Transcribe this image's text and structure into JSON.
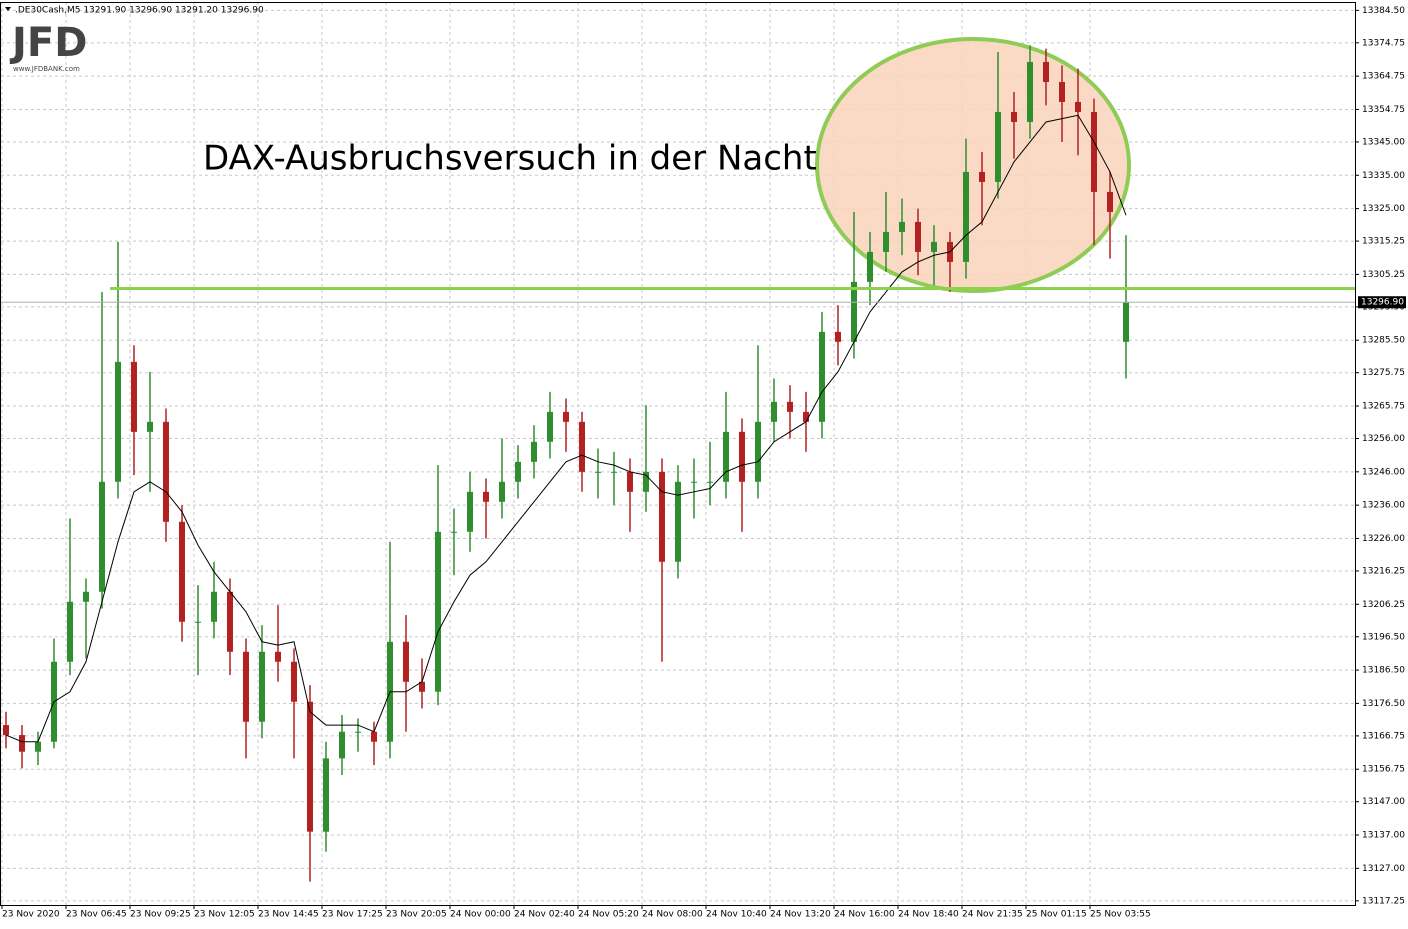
{
  "chart_data": {
    "type": "candlestick",
    "title": ".DE30Cash,M5  13291.90 13296.90 13291.20 13296.90",
    "logo": "JFD",
    "logo_sub": "www.JFDBANK.com",
    "annotation": "DAX-Ausbruchsversuch in der Nacht",
    "up_color": "#2f8f2f",
    "down_color": "#b22222",
    "grid": true,
    "ylim": [
      13116,
      13387
    ],
    "yticks": [
      {
        "value": 13384.5,
        "label": "13384.50"
      },
      {
        "value": 13374.75,
        "label": "13374.75"
      },
      {
        "value": 13364.75,
        "label": "13364.75"
      },
      {
        "value": 13354.75,
        "label": "13354.75"
      },
      {
        "value": 13345,
        "label": "13345.00"
      },
      {
        "value": 13335,
        "label": "13335.00"
      },
      {
        "value": 13325,
        "label": "13325.00"
      },
      {
        "value": 13315.25,
        "label": "13315.25"
      },
      {
        "value": 13305.25,
        "label": "13305.25"
      },
      {
        "value": 13295.5,
        "label": "13295.50"
      },
      {
        "value": 13285.5,
        "label": "13285.50"
      },
      {
        "value": 13275.75,
        "label": "13275.75"
      },
      {
        "value": 13265.75,
        "label": "13265.75"
      },
      {
        "value": 13256,
        "label": "13256.00"
      },
      {
        "value": 13246,
        "label": "13246.00"
      },
      {
        "value": 13236,
        "label": "13236.00"
      },
      {
        "value": 13226,
        "label": "13226.00"
      },
      {
        "value": 13216.25,
        "label": "13216.25"
      },
      {
        "value": 13206.25,
        "label": "13206.25"
      },
      {
        "value": 13196.5,
        "label": "13196.50"
      },
      {
        "value": 13186.5,
        "label": "13186.50"
      },
      {
        "value": 13176.5,
        "label": "13176.50"
      },
      {
        "value": 13166.75,
        "label": "13166.75"
      },
      {
        "value": 13156.75,
        "label": "13156.75"
      },
      {
        "value": 13147,
        "label": "13147.00"
      },
      {
        "value": 13137,
        "label": "13137.00"
      },
      {
        "value": 13127,
        "label": "13127.00"
      },
      {
        "value": 13117.25,
        "label": "13117.25"
      }
    ],
    "xticks": [
      {
        "value": 0,
        "label": "23 Nov 2020"
      },
      {
        "value": 4,
        "label": "23 Nov 06:45"
      },
      {
        "value": 8,
        "label": "23 Nov 09:25"
      },
      {
        "value": 12,
        "label": "23 Nov 12:05"
      },
      {
        "value": 16,
        "label": "23 Nov 14:45"
      },
      {
        "value": 20,
        "label": "23 Nov 17:25"
      },
      {
        "value": 24,
        "label": "23 Nov 20:05"
      },
      {
        "value": 28,
        "label": "24 Nov 00:00"
      },
      {
        "value": 32,
        "label": "24 Nov 02:40"
      },
      {
        "value": 36,
        "label": "24 Nov 05:20"
      },
      {
        "value": 40,
        "label": "24 Nov 08:00"
      },
      {
        "value": 44,
        "label": "24 Nov 10:40"
      },
      {
        "value": 48,
        "label": "24 Nov 13:20"
      },
      {
        "value": 52,
        "label": "24 Nov 16:00"
      },
      {
        "value": 56,
        "label": "24 Nov 18:40"
      },
      {
        "value": 60,
        "label": "24 Nov 21:35"
      },
      {
        "value": 64,
        "label": "25 Nov 01:15"
      },
      {
        "value": 68,
        "label": "25 Nov 03:55"
      }
    ],
    "candles": {
      "open": [
        13170,
        13167,
        13162,
        13165,
        13189,
        13207,
        13210,
        13243,
        13279,
        13258,
        13261,
        13231,
        13201,
        13201,
        13210,
        13192,
        13171,
        13192,
        13189,
        13177,
        13138,
        13160,
        13168,
        13168,
        13165,
        13195,
        13183,
        13180,
        13228,
        13228,
        13240,
        13237,
        13243,
        13249,
        13255,
        13264,
        13261,
        13246,
        13246,
        13246,
        13240,
        13246,
        13219,
        13243,
        13243,
        13243,
        13258,
        13243,
        13261,
        13267,
        13264,
        13261,
        13288,
        13285,
        13303,
        13312,
        13318,
        13321,
        13312,
        13315,
        13309,
        13336,
        13333,
        13354,
        13351,
        13369,
        13363,
        13357,
        13354,
        13330,
        13285
      ],
      "high": [
        13174,
        13170,
        13168,
        13196,
        13232,
        13214,
        13300,
        13315,
        13284,
        13276,
        13265,
        13236,
        13212,
        13219,
        13214,
        13196,
        13200,
        13206,
        13193,
        13182,
        13165,
        13173,
        13172,
        13171,
        13225,
        13203,
        13190,
        13248,
        13235,
        13246,
        13244,
        13256,
        13254,
        13260,
        13270,
        13268,
        13264,
        13253,
        13252,
        13250,
        13266,
        13250,
        13248,
        13250,
        13255,
        13270,
        13262,
        13284,
        13274,
        13272,
        13270,
        13294,
        13296,
        13324,
        13318,
        13330,
        13328,
        13325,
        13320,
        13318,
        13346,
        13342,
        13372,
        13360,
        13374,
        13373,
        13368,
        13367,
        13358,
        13336,
        13317
      ],
      "low": [
        13163,
        13157,
        13158,
        13163,
        13185,
        13190,
        13205,
        13238,
        13245,
        13240,
        13225,
        13195,
        13185,
        13196,
        13185,
        13160,
        13166,
        13183,
        13160,
        13123,
        13132,
        13155,
        13162,
        13158,
        13160,
        13168,
        13175,
        13176,
        13215,
        13222,
        13226,
        13232,
        13238,
        13244,
        13250,
        13252,
        13240,
        13238,
        13236,
        13228,
        13234,
        13189,
        13214,
        13232,
        13236,
        13238,
        13228,
        13238,
        13255,
        13256,
        13252,
        13256,
        13278,
        13280,
        13296,
        13306,
        13311,
        13305,
        13302,
        13300,
        13304,
        13320,
        13328,
        13340,
        13346,
        13356,
        13345,
        13341,
        13314,
        13310,
        13274
      ],
      "close": [
        13167,
        13162,
        13165,
        13189,
        13207,
        13210,
        13243,
        13279,
        13258,
        13261,
        13231,
        13201,
        13201,
        13210,
        13192,
        13171,
        13192,
        13189,
        13177,
        13138,
        13160,
        13168,
        13168,
        13165,
        13195,
        13183,
        13180,
        13228,
        13228,
        13240,
        13237,
        13243,
        13249,
        13255,
        13264,
        13261,
        13246,
        13246,
        13246,
        13240,
        13246,
        13219,
        13243,
        13243,
        13243,
        13258,
        13243,
        13261,
        13267,
        13264,
        13261,
        13288,
        13285,
        13303,
        13312,
        13318,
        13321,
        13312,
        13315,
        13309,
        13336,
        13333,
        13354,
        13351,
        13369,
        13363,
        13357,
        13354,
        13330,
        13324,
        13296.9
      ]
    },
    "series": [
      {
        "color": "#000000",
        "values": [
          13167,
          13165,
          13165,
          13177,
          13180,
          13189,
          13207,
          13225,
          13240,
          13243,
          13240,
          13234,
          13224,
          13216,
          13210,
          13204,
          13195,
          13194,
          13195,
          13174,
          13170,
          13170,
          13170,
          13168,
          13180,
          13180,
          13183,
          13198,
          13207,
          13215,
          13219,
          13225,
          13231,
          13237,
          13243,
          13249,
          13251,
          13249,
          13248,
          13246,
          13245,
          13240,
          13239,
          13240,
          13241,
          13246,
          13248,
          13249,
          13255,
          13258,
          13261,
          13270,
          13276,
          13285,
          13294,
          13300,
          13306,
          13309,
          13311,
          13312,
          13317,
          13321,
          13330,
          13339,
          13345,
          13351,
          13352,
          13353,
          13345,
          13336,
          13323
        ]
      }
    ],
    "hline": {
      "value": 13301,
      "color": "#8fd14f"
    },
    "last_price": {
      "value": 13296.9,
      "label": "13296.90"
    }
  }
}
